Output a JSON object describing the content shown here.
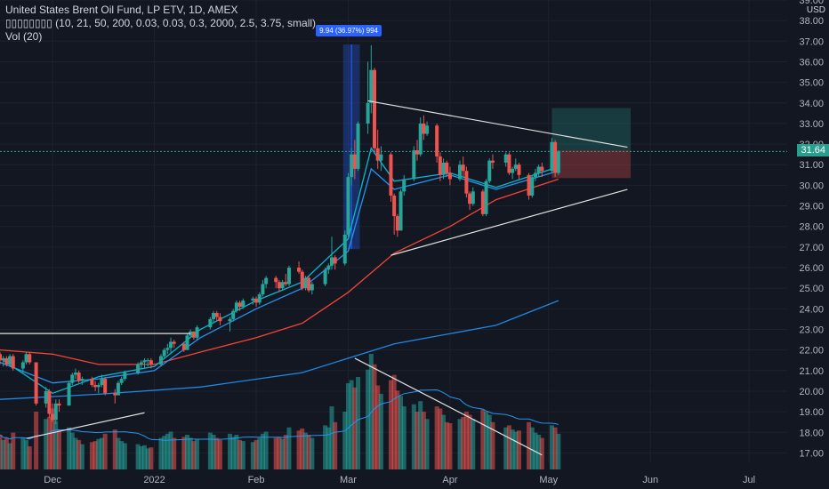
{
  "legend": {
    "symbol_line": "United States Brent Oil Fund, LP ETV, 1D, AMEX",
    "indicator_line": "▯▯▯▯▯▯▯▯ (10, 21, 50, 200, 0.03, 0.03, 0.3, 2000, 2.5, 3.75, small)",
    "volume_line": "Vol (20)"
  },
  "currency": "USD",
  "last_price_label": "31.64",
  "measure_label": "9.94 (36.97%) 994",
  "colors": {
    "background": "#131722",
    "up": "#26a69a",
    "down": "#ef5350",
    "ema_fast": "#00bcd4",
    "ema_slow": "#2196f3",
    "sma50": "#f44336",
    "sma200": "#1e88e5",
    "accent": "#2962ff"
  },
  "chart_data": {
    "type": "candlestick",
    "ylim": [
      16.5,
      39.0
    ],
    "y_ticks": [
      17.0,
      18.0,
      19.0,
      20.0,
      21.0,
      22.0,
      23.0,
      24.0,
      25.0,
      26.0,
      27.0,
      28.0,
      29.0,
      30.0,
      31.0,
      32.0,
      33.0,
      34.0,
      35.0,
      36.0,
      37.0,
      38.0,
      39.0
    ],
    "x_tick_labels": [
      {
        "label": "Dec",
        "date": "2021-12-01"
      },
      {
        "label": "2022",
        "date": "2022-01-01"
      },
      {
        "label": "Feb",
        "date": "2022-02-01"
      },
      {
        "label": "Mar",
        "date": "2022-03-01"
      },
      {
        "label": "Apr",
        "date": "2022-04-01"
      },
      {
        "label": "May",
        "date": "2022-05-01"
      },
      {
        "label": "Jun",
        "date": "2022-06-01"
      },
      {
        "label": "Jul",
        "date": "2022-07-01"
      }
    ],
    "last_price": 31.64,
    "long_position": {
      "entry": 31.7,
      "target": 33.75,
      "stop": 30.35,
      "start": "2022-05-02",
      "end": "2022-05-26"
    },
    "measure_range": {
      "from": 26.9,
      "to": 36.84,
      "start": "2022-02-28",
      "end": "2022-03-04"
    },
    "trendlines": [
      {
        "x1": "2022-03-07",
        "y1": 34.1,
        "x2": "2022-05-25",
        "y2": 31.85
      },
      {
        "x1": "2022-03-14",
        "y1": 26.6,
        "x2": "2022-05-25",
        "y2": 29.8
      },
      {
        "x1": "2021-11-15",
        "y1": 22.8,
        "x2": "2022-01-12",
        "y2": 22.8
      },
      {
        "x1": "2021-11-23",
        "y1": 17.7,
        "x2": "2021-12-29",
        "y2": 18.95
      },
      {
        "x1": "2022-03-03",
        "y1": 21.6,
        "x2": "2022-04-29",
        "y2": 16.9
      }
    ],
    "moving_averages": [
      {
        "key": "sma200",
        "points": [
          [
            "2021-11-15",
            19.6
          ],
          [
            "2021-12-15",
            19.85
          ],
          [
            "2022-01-15",
            20.2
          ],
          [
            "2022-02-15",
            20.9
          ],
          [
            "2022-03-15",
            22.3
          ],
          [
            "2022-04-15",
            23.2
          ],
          [
            "2022-05-04",
            24.4
          ]
        ]
      },
      {
        "key": "sma50",
        "points": [
          [
            "2021-11-15",
            22.0
          ],
          [
            "2021-12-01",
            21.8
          ],
          [
            "2021-12-15",
            21.3
          ],
          [
            "2022-01-01",
            21.3
          ],
          [
            "2022-01-15",
            21.9
          ],
          [
            "2022-02-01",
            22.6
          ],
          [
            "2022-02-15",
            23.3
          ],
          [
            "2022-03-01",
            24.8
          ],
          [
            "2022-03-15",
            26.7
          ],
          [
            "2022-04-01",
            28.0
          ],
          [
            "2022-04-15",
            29.3
          ],
          [
            "2022-05-04",
            30.3
          ]
        ]
      },
      {
        "key": "ema_slow",
        "points": [
          [
            "2021-11-15",
            21.4
          ],
          [
            "2021-12-01",
            20.4
          ],
          [
            "2021-12-15",
            20.6
          ],
          [
            "2022-01-01",
            21.0
          ],
          [
            "2022-01-15",
            22.6
          ],
          [
            "2022-02-01",
            24.0
          ],
          [
            "2022-02-15",
            25.0
          ],
          [
            "2022-03-01",
            26.8
          ],
          [
            "2022-03-08",
            30.8
          ],
          [
            "2022-03-15",
            29.8
          ],
          [
            "2022-04-01",
            30.5
          ],
          [
            "2022-04-15",
            29.8
          ],
          [
            "2022-05-04",
            30.7
          ]
        ]
      },
      {
        "key": "ema_fast",
        "points": [
          [
            "2021-11-15",
            21.6
          ],
          [
            "2021-12-01",
            19.9
          ],
          [
            "2021-12-15",
            20.7
          ],
          [
            "2022-01-01",
            21.2
          ],
          [
            "2022-01-15",
            23.0
          ],
          [
            "2022-02-01",
            24.4
          ],
          [
            "2022-02-15",
            25.3
          ],
          [
            "2022-03-01",
            27.4
          ],
          [
            "2022-03-08",
            31.8
          ],
          [
            "2022-03-15",
            30.2
          ],
          [
            "2022-04-01",
            30.6
          ],
          [
            "2022-04-15",
            29.9
          ],
          [
            "2022-05-04",
            30.9
          ]
        ]
      }
    ],
    "candles": [
      [
        "2021-11-15",
        21.8,
        21.9,
        21.3,
        21.5,
        33
      ],
      [
        "2021-11-16",
        21.5,
        21.7,
        21.2,
        21.6,
        28
      ],
      [
        "2021-11-17",
        21.6,
        21.7,
        21.2,
        21.3,
        30
      ],
      [
        "2021-11-18",
        21.3,
        21.8,
        21.2,
        21.7,
        25
      ],
      [
        "2021-11-19",
        21.7,
        21.8,
        21.0,
        21.1,
        35
      ],
      [
        "2021-11-22",
        21.1,
        21.5,
        20.9,
        21.4,
        30
      ],
      [
        "2021-11-23",
        21.4,
        21.9,
        21.3,
        21.8,
        28
      ],
      [
        "2021-11-24",
        21.8,
        21.9,
        21.3,
        21.4,
        22
      ],
      [
        "2021-11-26",
        21.4,
        21.4,
        19.3,
        19.4,
        55
      ],
      [
        "2021-11-29",
        19.4,
        20.2,
        19.2,
        20.0,
        48
      ],
      [
        "2021-11-30",
        20.0,
        20.1,
        18.7,
        18.9,
        50
      ],
      [
        "2021-12-01",
        18.9,
        19.4,
        18.5,
        18.6,
        58
      ],
      [
        "2021-12-02",
        18.6,
        19.6,
        18.4,
        19.4,
        46
      ],
      [
        "2021-12-03",
        19.4,
        19.6,
        19.0,
        19.3,
        38
      ],
      [
        "2021-12-06",
        19.3,
        20.5,
        19.3,
        20.4,
        40
      ],
      [
        "2021-12-07",
        20.4,
        20.9,
        20.3,
        20.8,
        35
      ],
      [
        "2021-12-08",
        20.8,
        21.1,
        20.6,
        20.9,
        30
      ],
      [
        "2021-12-09",
        20.9,
        21.0,
        20.4,
        20.5,
        28
      ],
      [
        "2021-12-10",
        20.5,
        20.7,
        20.3,
        20.6,
        24
      ],
      [
        "2021-12-13",
        20.6,
        20.7,
        20.2,
        20.3,
        26
      ],
      [
        "2021-12-14",
        20.3,
        20.5,
        20.0,
        20.2,
        27
      ],
      [
        "2021-12-15",
        20.2,
        20.4,
        19.9,
        20.3,
        29
      ],
      [
        "2021-12-16",
        20.3,
        20.8,
        20.2,
        20.6,
        30
      ],
      [
        "2021-12-17",
        20.6,
        20.7,
        19.8,
        19.9,
        34
      ],
      [
        "2021-12-20",
        19.9,
        20.1,
        19.4,
        19.8,
        38
      ],
      [
        "2021-12-21",
        19.8,
        20.5,
        19.8,
        20.4,
        30
      ],
      [
        "2021-12-22",
        20.4,
        20.7,
        20.3,
        20.6,
        27
      ],
      [
        "2021-12-23",
        20.6,
        21.0,
        20.5,
        20.9,
        25
      ],
      [
        "2021-12-27",
        20.9,
        21.4,
        20.8,
        21.3,
        24
      ],
      [
        "2021-12-28",
        21.3,
        21.5,
        21.1,
        21.4,
        22
      ],
      [
        "2021-12-29",
        21.4,
        21.6,
        21.1,
        21.5,
        23
      ],
      [
        "2021-12-30",
        21.5,
        21.6,
        21.2,
        21.5,
        20
      ],
      [
        "2021-12-31",
        21.5,
        21.6,
        21.1,
        21.3,
        21
      ],
      [
        "2022-01-03",
        21.3,
        21.8,
        21.2,
        21.7,
        30
      ],
      [
        "2022-01-04",
        21.7,
        22.1,
        21.6,
        22.0,
        32
      ],
      [
        "2022-01-05",
        22.0,
        22.3,
        21.8,
        22.1,
        34
      ],
      [
        "2022-01-06",
        22.1,
        22.6,
        21.8,
        22.4,
        36
      ],
      [
        "2022-01-07",
        22.4,
        22.5,
        22.1,
        22.3,
        30
      ],
      [
        "2022-01-10",
        22.3,
        22.4,
        21.9,
        22.0,
        31
      ],
      [
        "2022-01-11",
        22.0,
        22.8,
        22.0,
        22.7,
        33
      ],
      [
        "2022-01-12",
        22.7,
        23.0,
        22.6,
        22.9,
        30
      ],
      [
        "2022-01-13",
        22.9,
        22.9,
        22.5,
        22.6,
        27
      ],
      [
        "2022-01-14",
        22.6,
        23.2,
        22.5,
        23.1,
        29
      ],
      [
        "2022-01-18",
        23.1,
        23.6,
        23.0,
        23.5,
        35
      ],
      [
        "2022-01-19",
        23.5,
        23.9,
        23.3,
        23.8,
        33
      ],
      [
        "2022-01-20",
        23.8,
        23.9,
        23.4,
        23.6,
        30
      ],
      [
        "2022-01-21",
        23.6,
        23.8,
        23.2,
        23.4,
        28
      ],
      [
        "2022-01-24",
        23.4,
        23.6,
        22.9,
        23.5,
        34
      ],
      [
        "2022-01-25",
        23.5,
        24.0,
        23.4,
        23.9,
        31
      ],
      [
        "2022-01-26",
        23.9,
        24.4,
        23.8,
        24.3,
        33
      ],
      [
        "2022-01-27",
        24.3,
        24.4,
        23.9,
        24.1,
        28
      ],
      [
        "2022-01-28",
        24.1,
        24.5,
        24.0,
        24.4,
        27
      ],
      [
        "2022-01-31",
        24.4,
        24.6,
        24.2,
        24.5,
        26
      ],
      [
        "2022-02-01",
        24.5,
        24.6,
        24.1,
        24.3,
        28
      ],
      [
        "2022-02-02",
        24.3,
        24.8,
        24.2,
        24.7,
        30
      ],
      [
        "2022-02-03",
        24.7,
        25.4,
        24.6,
        25.2,
        34
      ],
      [
        "2022-02-04",
        25.2,
        25.6,
        25.0,
        25.5,
        36
      ],
      [
        "2022-02-07",
        25.5,
        25.6,
        25.0,
        25.3,
        30
      ],
      [
        "2022-02-08",
        25.3,
        25.4,
        24.8,
        25.0,
        31
      ],
      [
        "2022-02-09",
        25.0,
        25.4,
        24.9,
        25.3,
        29
      ],
      [
        "2022-02-10",
        25.3,
        25.7,
        25.1,
        25.2,
        33
      ],
      [
        "2022-02-11",
        25.2,
        26.1,
        25.1,
        26.0,
        40
      ],
      [
        "2022-02-14",
        26.0,
        26.3,
        25.7,
        25.8,
        37
      ],
      [
        "2022-02-15",
        25.8,
        25.9,
        24.9,
        25.0,
        39
      ],
      [
        "2022-02-16",
        25.0,
        25.6,
        24.9,
        25.5,
        35
      ],
      [
        "2022-02-17",
        25.5,
        25.6,
        24.8,
        24.9,
        33
      ],
      [
        "2022-02-18",
        24.9,
        25.3,
        24.7,
        25.2,
        30
      ],
      [
        "2022-02-22",
        25.2,
        26.0,
        25.1,
        25.9,
        42
      ],
      [
        "2022-02-23",
        25.9,
        26.2,
        25.7,
        26.1,
        40
      ],
      [
        "2022-02-24",
        26.1,
        27.5,
        25.9,
        26.5,
        60
      ],
      [
        "2022-02-25",
        26.5,
        26.6,
        25.9,
        26.2,
        45
      ],
      [
        "2022-02-28",
        26.2,
        27.8,
        26.1,
        27.6,
        55
      ],
      [
        "2022-03-01",
        27.6,
        30.6,
        27.5,
        30.4,
        82
      ],
      [
        "2022-03-02",
        30.4,
        31.8,
        30.0,
        31.5,
        85
      ],
      [
        "2022-03-03",
        31.5,
        32.2,
        30.3,
        30.8,
        78
      ],
      [
        "2022-03-04",
        30.8,
        33.1,
        30.7,
        33.0,
        88
      ],
      [
        "2022-03-07",
        33.0,
        36.0,
        32.5,
        34.0,
        95
      ],
      [
        "2022-03-08",
        34.0,
        36.8,
        33.5,
        35.6,
        110
      ],
      [
        "2022-03-09",
        35.6,
        35.7,
        31.6,
        31.8,
        100
      ],
      [
        "2022-03-10",
        31.8,
        32.7,
        30.8,
        31.2,
        80
      ],
      [
        "2022-03-11",
        31.2,
        31.9,
        30.7,
        31.5,
        72
      ],
      [
        "2022-03-14",
        31.5,
        31.6,
        29.2,
        29.5,
        85
      ],
      [
        "2022-03-15",
        29.5,
        29.6,
        27.6,
        28.5,
        90
      ],
      [
        "2022-03-16",
        28.5,
        28.6,
        27.5,
        27.8,
        75
      ],
      [
        "2022-03-17",
        27.8,
        29.8,
        27.8,
        29.7,
        70
      ],
      [
        "2022-03-18",
        29.7,
        30.5,
        29.5,
        30.3,
        60
      ],
      [
        "2022-03-21",
        30.3,
        31.9,
        30.2,
        31.7,
        62
      ],
      [
        "2022-03-22",
        31.7,
        32.2,
        31.2,
        31.5,
        55
      ],
      [
        "2022-03-23",
        31.5,
        33.3,
        31.4,
        33.0,
        65
      ],
      [
        "2022-03-24",
        33.0,
        33.4,
        32.2,
        32.5,
        55
      ],
      [
        "2022-03-25",
        32.5,
        33.1,
        32.4,
        32.9,
        48
      ],
      [
        "2022-03-28",
        32.9,
        33.0,
        31.1,
        31.4,
        60
      ],
      [
        "2022-03-29",
        31.4,
        31.6,
        30.2,
        30.5,
        58
      ],
      [
        "2022-03-30",
        30.5,
        31.3,
        30.3,
        31.1,
        52
      ],
      [
        "2022-03-31",
        31.1,
        31.2,
        30.4,
        30.6,
        45
      ],
      [
        "2022-04-01",
        30.6,
        30.9,
        30.0,
        30.3,
        44
      ],
      [
        "2022-04-04",
        30.3,
        31.2,
        30.2,
        31.0,
        48
      ],
      [
        "2022-04-05",
        31.0,
        31.4,
        30.4,
        30.7,
        50
      ],
      [
        "2022-04-06",
        30.7,
        30.9,
        29.4,
        29.6,
        55
      ],
      [
        "2022-04-07",
        29.6,
        29.7,
        28.8,
        29.1,
        52
      ],
      [
        "2022-04-08",
        29.1,
        29.9,
        29.0,
        29.7,
        48
      ],
      [
        "2022-04-11",
        29.7,
        29.8,
        28.5,
        28.6,
        57
      ],
      [
        "2022-04-12",
        28.6,
        30.3,
        28.5,
        30.2,
        55
      ],
      [
        "2022-04-13",
        30.2,
        31.3,
        30.1,
        31.2,
        52
      ],
      [
        "2022-04-14",
        31.2,
        31.5,
        30.8,
        31.1,
        45
      ],
      [
        "2022-04-18",
        31.1,
        31.6,
        30.9,
        31.5,
        40
      ],
      [
        "2022-04-19",
        31.5,
        31.6,
        30.5,
        30.6,
        42
      ],
      [
        "2022-04-20",
        30.6,
        30.9,
        30.3,
        30.8,
        38
      ],
      [
        "2022-04-21",
        30.8,
        31.3,
        30.7,
        31.0,
        36
      ],
      [
        "2022-04-22",
        31.0,
        31.1,
        30.3,
        30.5,
        37
      ],
      [
        "2022-04-25",
        30.5,
        30.6,
        29.3,
        29.5,
        45
      ],
      [
        "2022-04-26",
        29.5,
        30.5,
        29.4,
        30.4,
        40
      ],
      [
        "2022-04-27",
        30.4,
        30.8,
        30.2,
        30.6,
        35
      ],
      [
        "2022-04-28",
        30.6,
        31.0,
        30.4,
        30.9,
        33
      ],
      [
        "2022-04-29",
        30.9,
        31.1,
        30.4,
        30.7,
        30
      ],
      [
        "2022-05-02",
        30.7,
        32.3,
        30.6,
        32.1,
        42
      ],
      [
        "2022-05-03",
        32.1,
        32.2,
        30.4,
        30.6,
        40
      ],
      [
        "2022-05-04",
        30.6,
        31.7,
        30.5,
        31.64,
        34
      ]
    ]
  }
}
